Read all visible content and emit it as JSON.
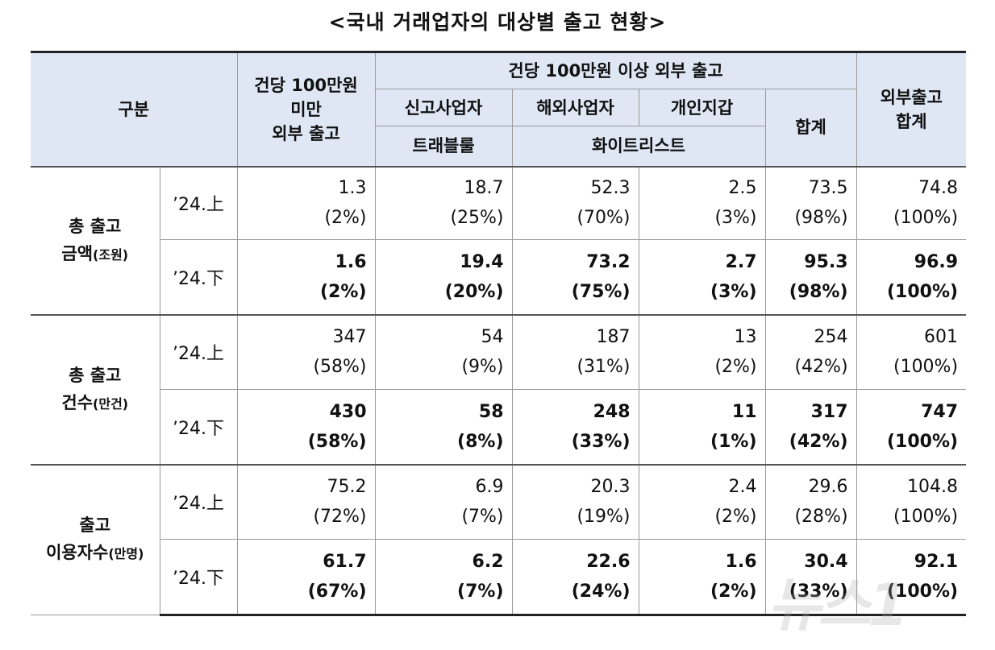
{
  "title": "<국내 거래업자의 대상별 출고 현황>",
  "header": {
    "category": "구분",
    "under": [
      "건당 100만원",
      "미만",
      "외부 출고"
    ],
    "over_group": "건당 100만원 이상 외부 출고",
    "reported": "신고사업자",
    "overseas": "해외사업자",
    "personal": "개인지갑",
    "travel_rule": "트래블룰",
    "whitelist": "화이트리스트",
    "subtotal": "합계",
    "total": [
      "외부출고",
      "합계"
    ]
  },
  "groups": [
    {
      "label": "총 출고",
      "label2": "금액",
      "unit": "(조원)",
      "rows": [
        {
          "period": "’24.上",
          "cells": [
            [
              "1.3",
              "(2%)"
            ],
            [
              "18.7",
              "(25%)"
            ],
            [
              "52.3",
              "(70%)"
            ],
            [
              "2.5",
              "(3%)"
            ],
            [
              "73.5",
              "(98%)"
            ],
            [
              "74.8",
              "(100%)"
            ]
          ]
        },
        {
          "period": "’24.下",
          "cells": [
            [
              "1.6",
              "(2%)"
            ],
            [
              "19.4",
              "(20%)"
            ],
            [
              "73.2",
              "(75%)"
            ],
            [
              "2.7",
              "(3%)"
            ],
            [
              "95.3",
              "(98%)"
            ],
            [
              "96.9",
              "(100%)"
            ]
          ]
        }
      ]
    },
    {
      "label": "총 출고",
      "label2": "건수",
      "unit": "(만건)",
      "rows": [
        {
          "period": "’24.上",
          "cells": [
            [
              "347",
              "(58%)"
            ],
            [
              "54",
              "(9%)"
            ],
            [
              "187",
              "(31%)"
            ],
            [
              "13",
              "(2%)"
            ],
            [
              "254",
              "(42%)"
            ],
            [
              "601",
              "(100%)"
            ]
          ]
        },
        {
          "period": "’24.下",
          "cells": [
            [
              "430",
              "(58%)"
            ],
            [
              "58",
              "(8%)"
            ],
            [
              "248",
              "(33%)"
            ],
            [
              "11",
              "(1%)"
            ],
            [
              "317",
              "(42%)"
            ],
            [
              "747",
              "(100%)"
            ]
          ]
        }
      ]
    },
    {
      "label": "출고",
      "label2": "이용자수",
      "unit": "(만명)",
      "rows": [
        {
          "period": "’24.上",
          "cells": [
            [
              "75.2",
              "(72%)"
            ],
            [
              "6.9",
              "(7%)"
            ],
            [
              "20.3",
              "(19%)"
            ],
            [
              "2.4",
              "(2%)"
            ],
            [
              "29.6",
              "(28%)"
            ],
            [
              "104.8",
              "(100%)"
            ]
          ]
        },
        {
          "period": "’24.下",
          "cells": [
            [
              "61.7",
              "(67%)"
            ],
            [
              "6.2",
              "(7%)"
            ],
            [
              "22.6",
              "(24%)"
            ],
            [
              "1.6",
              "(2%)"
            ],
            [
              "30.4",
              "(33%)"
            ],
            [
              "92.1",
              "(100%)"
            ]
          ]
        }
      ]
    }
  ],
  "watermark": "뉴스1"
}
